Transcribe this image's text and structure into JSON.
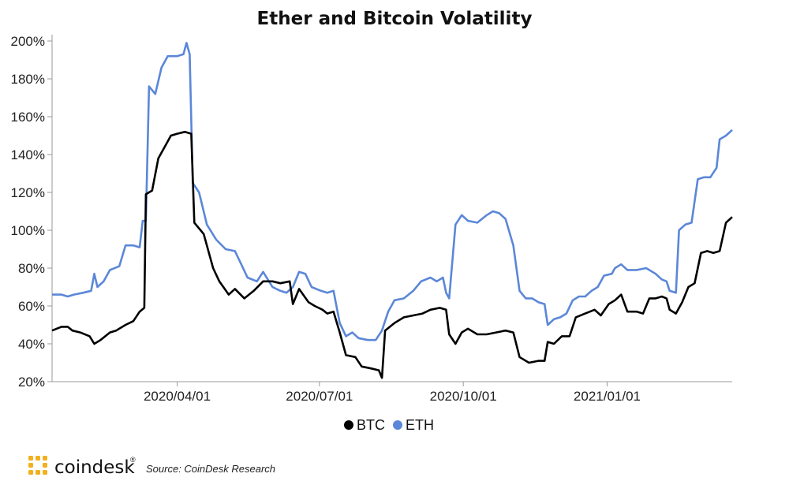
{
  "chart_data": {
    "type": "line",
    "title": "Ether and Bitcoin Volatility",
    "xlabel": "",
    "ylabel": "",
    "x_tick_labels": [
      "2020/04/01",
      "2020/07/01",
      "2020/10/01",
      "2021/01/01"
    ],
    "y_tick_labels": [
      "20%",
      "40%",
      "60%",
      "80%",
      "100%",
      "120%",
      "140%",
      "160%",
      "180%",
      "200%"
    ],
    "ylim": [
      20,
      200
    ],
    "y_unit": "%",
    "legend_position": "bottom-center",
    "grid": false,
    "series": [
      {
        "name": "BTC",
        "color": "#000000",
        "points": [
          [
            "2020-01-12",
            47
          ],
          [
            "2020-01-18",
            49
          ],
          [
            "2020-01-22",
            49
          ],
          [
            "2020-01-25",
            47
          ],
          [
            "2020-01-30",
            46
          ],
          [
            "2020-02-05",
            44
          ],
          [
            "2020-02-08",
            40
          ],
          [
            "2020-02-12",
            42
          ],
          [
            "2020-02-18",
            46
          ],
          [
            "2020-02-22",
            47
          ],
          [
            "2020-02-28",
            50
          ],
          [
            "2020-03-04",
            52
          ],
          [
            "2020-03-08",
            57
          ],
          [
            "2020-03-11",
            59
          ],
          [
            "2020-03-12",
            119
          ],
          [
            "2020-03-16",
            121
          ],
          [
            "2020-03-20",
            138
          ],
          [
            "2020-03-24",
            144
          ],
          [
            "2020-03-28",
            150
          ],
          [
            "2020-04-01",
            151
          ],
          [
            "2020-04-06",
            152
          ],
          [
            "2020-04-10",
            151
          ],
          [
            "2020-04-12",
            104
          ],
          [
            "2020-04-18",
            98
          ],
          [
            "2020-04-24",
            80
          ],
          [
            "2020-04-28",
            73
          ],
          [
            "2020-05-04",
            66
          ],
          [
            "2020-05-08",
            69
          ],
          [
            "2020-05-14",
            64
          ],
          [
            "2020-05-20",
            68
          ],
          [
            "2020-05-26",
            73
          ],
          [
            "2020-06-01",
            73
          ],
          [
            "2020-06-06",
            72
          ],
          [
            "2020-06-12",
            73
          ],
          [
            "2020-06-14",
            61
          ],
          [
            "2020-06-18",
            69
          ],
          [
            "2020-06-24",
            62
          ],
          [
            "2020-06-28",
            60
          ],
          [
            "2020-07-03",
            58
          ],
          [
            "2020-07-06",
            56
          ],
          [
            "2020-07-10",
            57
          ],
          [
            "2020-07-14",
            46
          ],
          [
            "2020-07-18",
            34
          ],
          [
            "2020-07-24",
            33
          ],
          [
            "2020-07-28",
            28
          ],
          [
            "2020-08-03",
            27
          ],
          [
            "2020-08-08",
            26
          ],
          [
            "2020-08-10",
            22
          ],
          [
            "2020-08-12",
            47
          ],
          [
            "2020-08-18",
            51
          ],
          [
            "2020-08-24",
            54
          ],
          [
            "2020-08-30",
            55
          ],
          [
            "2020-09-05",
            56
          ],
          [
            "2020-09-10",
            58
          ],
          [
            "2020-09-16",
            59
          ],
          [
            "2020-09-20",
            58
          ],
          [
            "2020-09-22",
            45
          ],
          [
            "2020-09-26",
            40
          ],
          [
            "2020-09-30",
            46
          ],
          [
            "2020-10-04",
            48
          ],
          [
            "2020-10-10",
            45
          ],
          [
            "2020-10-16",
            45
          ],
          [
            "2020-10-22",
            46
          ],
          [
            "2020-10-28",
            47
          ],
          [
            "2020-11-02",
            46
          ],
          [
            "2020-11-06",
            33
          ],
          [
            "2020-11-12",
            30
          ],
          [
            "2020-11-18",
            31
          ],
          [
            "2020-11-22",
            31
          ],
          [
            "2020-11-24",
            41
          ],
          [
            "2020-11-28",
            40
          ],
          [
            "2020-12-03",
            44
          ],
          [
            "2020-12-08",
            44
          ],
          [
            "2020-12-12",
            54
          ],
          [
            "2020-12-18",
            56
          ],
          [
            "2020-12-24",
            58
          ],
          [
            "2020-12-28",
            55
          ],
          [
            "2021-01-02",
            61
          ],
          [
            "2021-01-06",
            63
          ],
          [
            "2021-01-10",
            66
          ],
          [
            "2021-01-14",
            57
          ],
          [
            "2021-01-20",
            57
          ],
          [
            "2021-01-24",
            56
          ],
          [
            "2021-01-28",
            64
          ],
          [
            "2021-02-01",
            64
          ],
          [
            "2021-02-05",
            65
          ],
          [
            "2021-02-08",
            64
          ],
          [
            "2021-02-10",
            58
          ],
          [
            "2021-02-14",
            56
          ],
          [
            "2021-02-18",
            62
          ],
          [
            "2021-02-22",
            70
          ],
          [
            "2021-02-26",
            72
          ],
          [
            "2021-03-02",
            88
          ],
          [
            "2021-03-06",
            89
          ],
          [
            "2021-03-10",
            88
          ],
          [
            "2021-03-14",
            89
          ],
          [
            "2021-03-18",
            104
          ],
          [
            "2021-03-22",
            107
          ]
        ]
      },
      {
        "name": "ETH",
        "color": "#5b87d8",
        "points": [
          [
            "2020-01-12",
            66
          ],
          [
            "2020-01-18",
            66
          ],
          [
            "2020-01-22",
            65
          ],
          [
            "2020-01-26",
            66
          ],
          [
            "2020-02-01",
            67
          ],
          [
            "2020-02-06",
            68
          ],
          [
            "2020-02-08",
            77
          ],
          [
            "2020-02-10",
            70
          ],
          [
            "2020-02-14",
            73
          ],
          [
            "2020-02-18",
            79
          ],
          [
            "2020-02-24",
            81
          ],
          [
            "2020-02-28",
            92
          ],
          [
            "2020-03-04",
            92
          ],
          [
            "2020-03-08",
            91
          ],
          [
            "2020-03-10",
            105
          ],
          [
            "2020-03-12",
            105
          ],
          [
            "2020-03-14",
            176
          ],
          [
            "2020-03-18",
            172
          ],
          [
            "2020-03-22",
            186
          ],
          [
            "2020-03-26",
            192
          ],
          [
            "2020-04-01",
            192
          ],
          [
            "2020-04-05",
            193
          ],
          [
            "2020-04-07",
            199
          ],
          [
            "2020-04-09",
            193
          ],
          [
            "2020-04-11",
            125
          ],
          [
            "2020-04-15",
            120
          ],
          [
            "2020-04-20",
            103
          ],
          [
            "2020-04-26",
            95
          ],
          [
            "2020-05-02",
            90
          ],
          [
            "2020-05-08",
            89
          ],
          [
            "2020-05-12",
            82
          ],
          [
            "2020-05-16",
            75
          ],
          [
            "2020-05-22",
            73
          ],
          [
            "2020-05-26",
            78
          ],
          [
            "2020-06-01",
            70
          ],
          [
            "2020-06-06",
            68
          ],
          [
            "2020-06-10",
            67
          ],
          [
            "2020-06-14",
            70
          ],
          [
            "2020-06-18",
            78
          ],
          [
            "2020-06-22",
            77
          ],
          [
            "2020-06-26",
            70
          ],
          [
            "2020-07-02",
            68
          ],
          [
            "2020-07-06",
            67
          ],
          [
            "2020-07-10",
            68
          ],
          [
            "2020-07-14",
            51
          ],
          [
            "2020-07-18",
            44
          ],
          [
            "2020-07-22",
            46
          ],
          [
            "2020-07-26",
            43
          ],
          [
            "2020-08-01",
            42
          ],
          [
            "2020-08-06",
            42
          ],
          [
            "2020-08-10",
            47
          ],
          [
            "2020-08-14",
            57
          ],
          [
            "2020-08-18",
            63
          ],
          [
            "2020-08-24",
            64
          ],
          [
            "2020-08-30",
            68
          ],
          [
            "2020-09-04",
            73
          ],
          [
            "2020-09-10",
            75
          ],
          [
            "2020-09-14",
            73
          ],
          [
            "2020-09-18",
            75
          ],
          [
            "2020-09-20",
            67
          ],
          [
            "2020-09-22",
            64
          ],
          [
            "2020-09-26",
            103
          ],
          [
            "2020-09-30",
            108
          ],
          [
            "2020-10-04",
            105
          ],
          [
            "2020-10-10",
            104
          ],
          [
            "2020-10-16",
            108
          ],
          [
            "2020-10-20",
            110
          ],
          [
            "2020-10-24",
            109
          ],
          [
            "2020-10-28",
            106
          ],
          [
            "2020-11-02",
            92
          ],
          [
            "2020-11-06",
            68
          ],
          [
            "2020-11-10",
            64
          ],
          [
            "2020-11-14",
            64
          ],
          [
            "2020-11-18",
            62
          ],
          [
            "2020-11-22",
            61
          ],
          [
            "2020-11-24",
            50
          ],
          [
            "2020-11-28",
            53
          ],
          [
            "2020-12-02",
            54
          ],
          [
            "2020-12-06",
            56
          ],
          [
            "2020-12-10",
            63
          ],
          [
            "2020-12-14",
            65
          ],
          [
            "2020-12-18",
            65
          ],
          [
            "2020-12-22",
            68
          ],
          [
            "2020-12-26",
            70
          ],
          [
            "2020-12-30",
            76
          ],
          [
            "2021-01-04",
            77
          ],
          [
            "2021-01-06",
            80
          ],
          [
            "2021-01-10",
            82
          ],
          [
            "2021-01-14",
            79
          ],
          [
            "2021-01-20",
            79
          ],
          [
            "2021-01-26",
            80
          ],
          [
            "2021-02-01",
            77
          ],
          [
            "2021-02-05",
            74
          ],
          [
            "2021-02-08",
            73
          ],
          [
            "2021-02-10",
            68
          ],
          [
            "2021-02-14",
            67
          ],
          [
            "2021-02-16",
            100
          ],
          [
            "2021-02-20",
            103
          ],
          [
            "2021-02-24",
            104
          ],
          [
            "2021-02-28",
            127
          ],
          [
            "2021-03-04",
            128
          ],
          [
            "2021-03-08",
            128
          ],
          [
            "2021-03-12",
            133
          ],
          [
            "2021-03-14",
            148
          ],
          [
            "2021-03-18",
            150
          ],
          [
            "2021-03-22",
            153
          ]
        ]
      }
    ]
  },
  "footer": {
    "brand": "coindesk",
    "brand_mark": "®",
    "source": "Source: CoinDesk Research"
  }
}
